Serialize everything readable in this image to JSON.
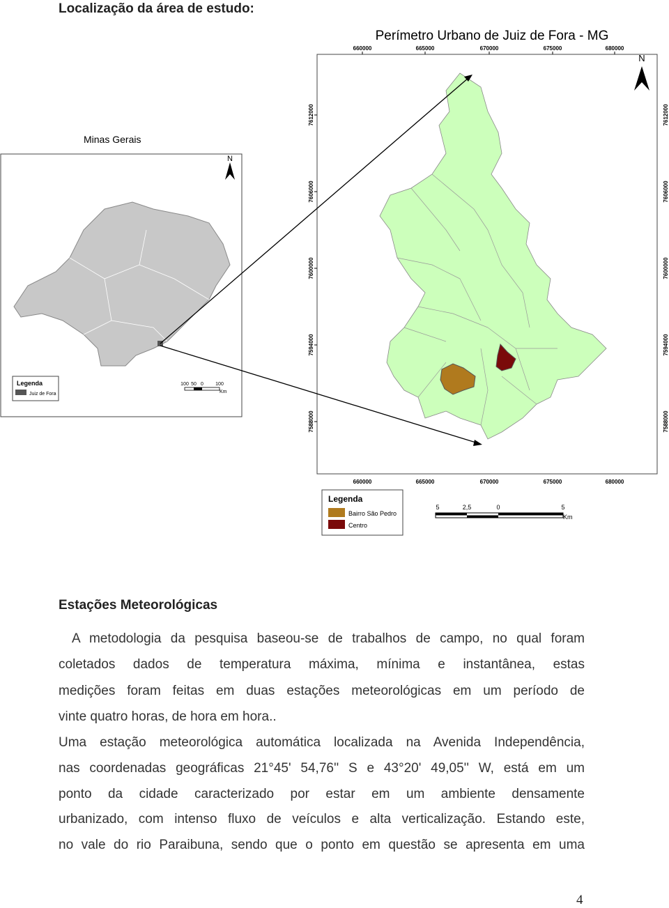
{
  "heading_location": "Localização da área de estudo:",
  "map_large": {
    "title": "Perímetro Urbano de Juiz de Fora - MG",
    "north": "N",
    "x_labels": [
      "660000",
      "665000",
      "670000",
      "675000",
      "680000"
    ],
    "y_labels": [
      "7612000",
      "7606000",
      "7600000",
      "7594000",
      "7588000"
    ],
    "legend_title": "Legenda",
    "legend_items": [
      "Bairro São Pedro",
      "Centro"
    ],
    "scale_labels": [
      "5",
      "2,5",
      "0",
      "5"
    ],
    "scale_unit": "Km"
  },
  "map_small": {
    "title": "Minas Gerais",
    "north": "N",
    "legend_title": "Legenda",
    "legend_items": [
      "Juiz de Fora"
    ],
    "scale_labels": [
      "100",
      "50",
      "0",
      "100"
    ],
    "scale_unit": "Km"
  },
  "heading_stations": "Estações Meteorológicas",
  "paragraphs": [
    [
      "A metodologia da pesquisa baseou-se de trabalhos de campo, no qual foram",
      "coletados dados de temperatura máxima, mínima e instantânea, estas",
      "medições foram feitas em duas estações meteorológicas em um período de",
      "vinte quatro horas, de hora em hora.."
    ],
    [
      "Uma estação meteorológica automática localizada na Avenida Independência,",
      "nas coordenadas geográficas 21°45' 54,76'' S e 43°20' 49,05'' W, está em um",
      "ponto da cidade caracterizado por estar em um ambiente densamente",
      "urbanizado, com intenso fluxo de veículos e alta verticalização. Estando este,",
      "no vale do rio Paraibuna, sendo que o ponto em questão se apresenta em uma"
    ]
  ],
  "page_number": "4"
}
